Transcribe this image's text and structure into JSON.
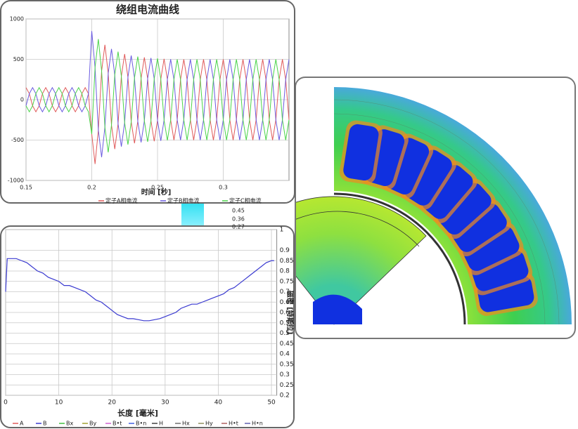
{
  "chart_data": [
    {
      "type": "line",
      "title": "绕组电流曲线",
      "x_label": "时间 [秒]",
      "x": [
        0.15,
        0.1525,
        0.155,
        0.1575,
        0.16,
        0.1625,
        0.165,
        0.1675,
        0.17,
        0.1725,
        0.175,
        0.1775,
        0.18,
        0.1825,
        0.185,
        0.1875,
        0.19,
        0.1925,
        0.195,
        0.1975,
        0.2,
        0.2025,
        0.205,
        0.2075,
        0.21,
        0.2125,
        0.215,
        0.2175,
        0.22,
        0.2225,
        0.225,
        0.2275,
        0.23,
        0.2325,
        0.235,
        0.2375,
        0.24,
        0.2425,
        0.245,
        0.2475,
        0.25,
        0.2525,
        0.255,
        0.2575,
        0.26,
        0.2625,
        0.265,
        0.2675,
        0.27,
        0.2725,
        0.275,
        0.2775,
        0.28,
        0.2825,
        0.285,
        0.2875,
        0.29,
        0.2925,
        0.295,
        0.2975,
        0.3,
        0.3025,
        0.305,
        0.3075,
        0.31,
        0.3125,
        0.315,
        0.3175,
        0.32,
        0.3225,
        0.325,
        0.3275,
        0.33,
        0.3325,
        0.335,
        0.3375,
        0.34,
        0.3425,
        0.345,
        0.3475,
        0.35
      ],
      "series": [
        {
          "name": "定子A相电流",
          "color": "#e05a5a",
          "values": [
            150,
            75,
            -75,
            -150,
            -75,
            75,
            150,
            75,
            -75,
            -150,
            -75,
            75,
            150,
            75,
            -75,
            -150,
            -75,
            75,
            150,
            75,
            -425,
            -796,
            -376,
            356,
            680,
            326,
            -315,
            -611,
            -298,
            291,
            566,
            278,
            -274,
            -540,
            -267,
            265,
            524,
            261,
            -259,
            -515,
            -256,
            255,
            506,
            252,
            -251,
            -500,
            -250,
            250,
            500,
            250,
            -250,
            -500,
            -250,
            250,
            500,
            250,
            -250,
            -500,
            -250,
            250,
            500,
            250,
            -250,
            -500,
            -250,
            250,
            500,
            250,
            -250,
            -500,
            -250,
            250,
            500,
            250,
            -250,
            -500,
            -250,
            250,
            500,
            250,
            -250
          ]
        },
        {
          "name": "定子B相电流",
          "color": "#6a5ae0",
          "values": [
            -75,
            75,
            150,
            75,
            -75,
            -150,
            -75,
            75,
            150,
            75,
            -75,
            -150,
            -75,
            75,
            150,
            75,
            -75,
            -150,
            -75,
            75,
            850,
            398,
            -376,
            -712,
            -340,
            326,
            629,
            306,
            -298,
            -581,
            -283,
            278,
            547,
            270,
            -267,
            -529,
            -262,
            261,
            517,
            258,
            -256,
            -509,
            -253,
            252,
            502,
            250,
            -250,
            -500,
            -250,
            250,
            500,
            250,
            -250,
            -500,
            -250,
            250,
            500,
            250,
            -250,
            -500,
            -250,
            250,
            500,
            250,
            -250,
            -500,
            -250,
            250,
            500,
            250,
            -250,
            -500,
            -250,
            250,
            500,
            250,
            -250,
            -500,
            -250,
            250,
            500
          ]
        },
        {
          "name": "定子C相电流",
          "color": "#4ad44a",
          "values": [
            -75,
            -150,
            -75,
            75,
            150,
            75,
            -75,
            -150,
            -75,
            75,
            150,
            75,
            -75,
            -150,
            -75,
            75,
            150,
            75,
            -75,
            -150,
            -425,
            398,
            751,
            356,
            -340,
            -652,
            -315,
            306,
            595,
            291,
            -283,
            -556,
            -274,
            270,
            534,
            265,
            -262,
            -521,
            -259,
            258,
            512,
            255,
            -253,
            -504,
            -251,
            250,
            500,
            250,
            -250,
            -500,
            -250,
            250,
            500,
            250,
            -250,
            -500,
            -250,
            250,
            500,
            250,
            -250,
            -500,
            -250,
            250,
            500,
            250,
            -250,
            -500,
            -250,
            250,
            500,
            250,
            -250,
            -500,
            -250,
            250,
            500,
            250,
            -250,
            -500,
            -250
          ]
        }
      ],
      "xlim": [
        0.15,
        0.35
      ],
      "xticks": [
        0.15,
        0.2,
        0.25,
        0.3
      ],
      "ylim": [
        -1000,
        1000
      ],
      "yticks": [
        -1000,
        -500,
        0,
        500,
        1000
      ],
      "grid": true,
      "y_axis_side": "left"
    },
    {
      "type": "line",
      "x_label": "长度 [毫米]",
      "y_label": "磁密 [特斯拉]",
      "x": [
        0,
        0.3,
        1,
        2,
        3,
        4,
        5,
        6,
        7,
        8,
        9,
        10,
        11,
        12,
        13,
        14,
        15,
        16,
        17,
        18,
        19,
        20,
        21,
        22,
        23,
        24,
        25,
        26,
        27,
        28,
        29,
        30,
        31,
        32,
        33,
        34,
        35,
        36,
        37,
        38,
        39,
        40,
        41,
        42,
        43,
        44,
        45,
        46,
        47,
        48,
        49,
        50,
        50.5
      ],
      "series": [
        {
          "color": "#3a3ad0",
          "values": [
            0.7,
            0.86,
            0.86,
            0.86,
            0.85,
            0.84,
            0.82,
            0.8,
            0.79,
            0.77,
            0.76,
            0.75,
            0.73,
            0.73,
            0.72,
            0.71,
            0.7,
            0.68,
            0.66,
            0.65,
            0.63,
            0.61,
            0.59,
            0.58,
            0.57,
            0.57,
            0.565,
            0.56,
            0.56,
            0.565,
            0.57,
            0.58,
            0.59,
            0.6,
            0.62,
            0.63,
            0.64,
            0.64,
            0.65,
            0.66,
            0.67,
            0.68,
            0.69,
            0.71,
            0.72,
            0.74,
            0.76,
            0.78,
            0.8,
            0.82,
            0.84,
            0.85,
            0.85
          ]
        }
      ],
      "legend": [
        {
          "name": "A",
          "color": "#e05a5a"
        },
        {
          "name": "B",
          "color": "#3a3ad0"
        },
        {
          "name": "Bx",
          "color": "#40c040"
        },
        {
          "name": "By",
          "color": "#a0a030"
        },
        {
          "name": "B•t",
          "color": "#d060d0"
        },
        {
          "name": "B•n",
          "color": "#4060e0"
        },
        {
          "name": "H",
          "color": "#404040"
        },
        {
          "name": "Hx",
          "color": "#707070"
        },
        {
          "name": "Hy",
          "color": "#909060"
        },
        {
          "name": "H•t",
          "color": "#b06060"
        },
        {
          "name": "H•n",
          "color": "#6060b0"
        }
      ],
      "xlim": [
        0,
        51
      ],
      "xticks": [
        0,
        10,
        20,
        30,
        40,
        50
      ],
      "ylim": [
        0.2,
        1
      ],
      "yticks": [
        0.2,
        0.25,
        0.3,
        0.35,
        0.4,
        0.45,
        0.5,
        0.55,
        0.6,
        0.65,
        0.7,
        0.75,
        0.8,
        0.85,
        0.9,
        1
      ],
      "grid": true,
      "y_axis_side": "right"
    }
  ],
  "colorbar": {
    "labels": [
      0.45,
      0.36,
      0.27
    ]
  }
}
